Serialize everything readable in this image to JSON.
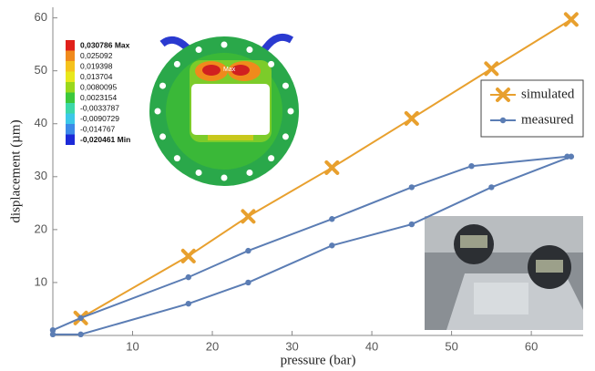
{
  "chart_data": {
    "type": "line",
    "xlabel": "pressure (bar)",
    "ylabel": "displacement (µm)",
    "xlim": [
      0,
      66.5
    ],
    "ylim": [
      0,
      62
    ],
    "xticks": [
      10,
      20,
      30,
      40,
      50,
      60
    ],
    "yticks": [
      10,
      20,
      30,
      40,
      50,
      60
    ],
    "legend": "right",
    "series": [
      {
        "name": "simulated",
        "color": "#e8a02e",
        "marker": "x",
        "x": [
          3.5,
          17,
          24.5,
          35,
          45,
          55,
          65
        ],
        "values": [
          3.3,
          15,
          22.5,
          31.7,
          41,
          50.4,
          59.7
        ]
      },
      {
        "name": "measured",
        "color": "#5b7db4",
        "marker": "o",
        "x": [
          0,
          3.5,
          17,
          24.5,
          35,
          45,
          52.5,
          64.5,
          65,
          55,
          45,
          35,
          24.5,
          17,
          3.5,
          0
        ],
        "values": [
          1,
          3.3,
          11,
          16,
          22,
          28,
          32,
          33.8,
          33.8,
          28,
          21,
          17,
          10,
          6,
          0.2,
          0.2
        ]
      }
    ],
    "inset_legend": [
      "0,030786 Max",
      "0,025092",
      "0,019398",
      "0,013704",
      "0,0080095",
      "0,0023154",
      "-0,0033787",
      "-0,0090729",
      "-0,014767",
      "-0,020461 Min"
    ],
    "inset_colors": [
      "#e0201a",
      "#f08a1c",
      "#f5c21c",
      "#e8e81c",
      "#9ad81c",
      "#3cc83c",
      "#3cd8a8",
      "#3cc8e8",
      "#3c8ae8",
      "#1c2ad8"
    ],
    "inset_max_label": "Max"
  }
}
